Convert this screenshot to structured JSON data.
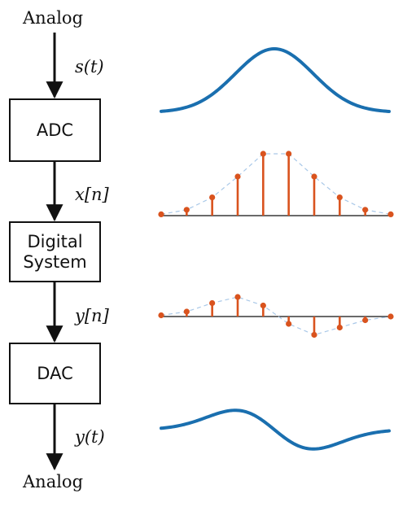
{
  "labels": {
    "input": "Analog",
    "output": "Analog"
  },
  "blocks": [
    {
      "id": "adc",
      "label": "ADC"
    },
    {
      "id": "digital",
      "label": "Digital System"
    },
    {
      "id": "dac",
      "label": "DAC"
    }
  ],
  "signals": {
    "s_t": "s(t)",
    "x_n": "x[n]",
    "y_n": "y[n]",
    "y_t": "y(t)"
  },
  "colors": {
    "analog": "#1a6faf",
    "samples": "#d9531e",
    "envelope": "#a9c8e8",
    "lines": "#111111"
  },
  "waveforms": {
    "sample_count": 10,
    "x_n": [
      0.02,
      0.09,
      0.28,
      0.6,
      0.95,
      0.95,
      0.6,
      0.28,
      0.09,
      0.02
    ],
    "y_n": [
      0.05,
      0.2,
      0.55,
      0.8,
      0.45,
      -0.3,
      -0.75,
      -0.45,
      -0.15,
      0.0
    ]
  }
}
